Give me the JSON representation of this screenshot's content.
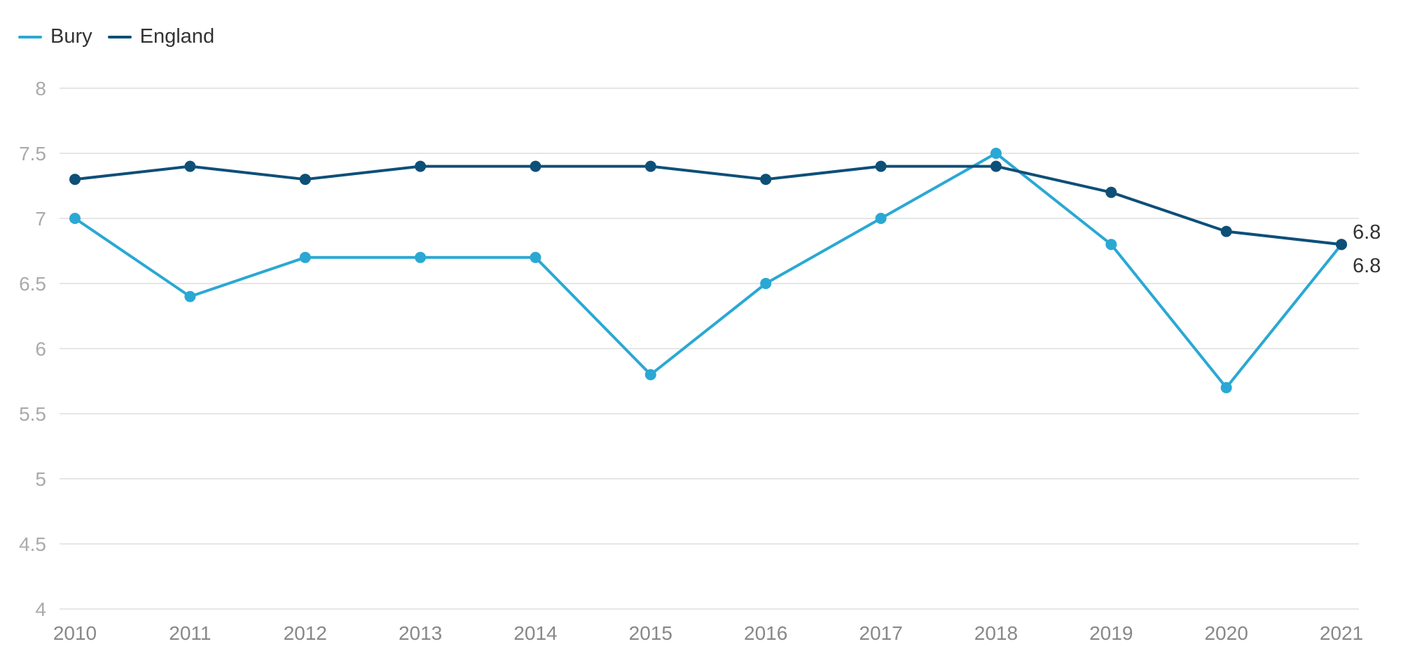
{
  "chart_data": {
    "type": "line",
    "title": "",
    "xlabel": "",
    "ylabel": "",
    "x": [
      "2010",
      "2011",
      "2012",
      "2013",
      "2014",
      "2015",
      "2016",
      "2017",
      "2018",
      "2019",
      "2020",
      "2021"
    ],
    "ylim": [
      4,
      8
    ],
    "yticks": [
      "8",
      "7.5",
      "7",
      "6.5",
      "6",
      "5.5",
      "5",
      "4.5",
      "4"
    ],
    "grid": true,
    "legend_position": "top-left",
    "series": [
      {
        "name": "Bury",
        "color": "#2aa8d4",
        "values": [
          7.0,
          6.4,
          6.7,
          6.7,
          6.7,
          5.8,
          6.5,
          7.0,
          7.5,
          6.8,
          5.7,
          6.8
        ],
        "end_label": "6.8"
      },
      {
        "name": "England",
        "color": "#0e4f78",
        "values": [
          7.3,
          7.4,
          7.3,
          7.4,
          7.4,
          7.4,
          7.3,
          7.4,
          7.4,
          7.2,
          6.9,
          6.8
        ],
        "end_label": "6.8"
      }
    ]
  }
}
